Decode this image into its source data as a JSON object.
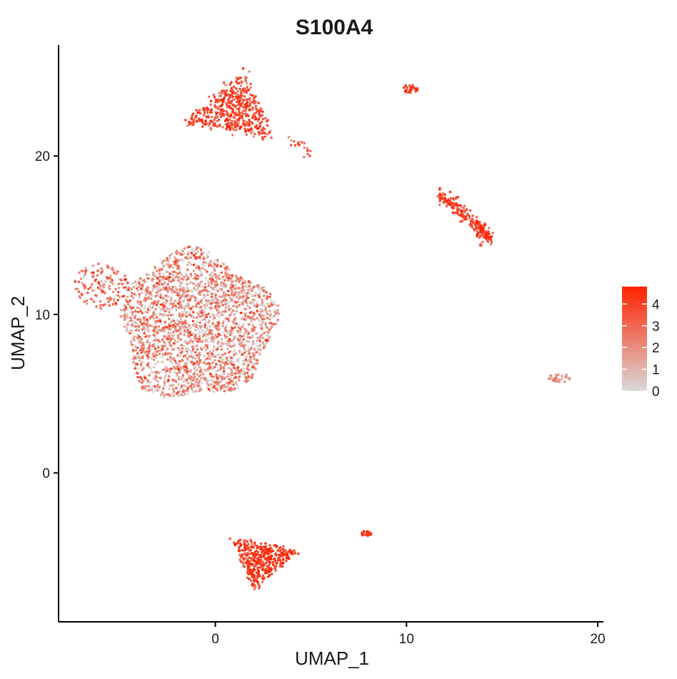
{
  "chart_data": {
    "type": "scatter",
    "title": "S100A4",
    "xlabel": "UMAP_1",
    "ylabel": "UMAP_2",
    "xlim": [
      -8.2,
      20.3
    ],
    "ylim": [
      -9.4,
      27.0
    ],
    "x_ticks": [
      0,
      10,
      20
    ],
    "x_tick_labels": [
      "0",
      "10",
      "20"
    ],
    "y_ticks": [
      0,
      10,
      20
    ],
    "y_tick_labels": [
      "0",
      "10",
      "20"
    ],
    "grid": false,
    "legend": {
      "placement": "right",
      "kind": "colorbar",
      "range": [
        0,
        4.8
      ],
      "ticks": [
        0,
        1,
        2,
        3,
        4
      ],
      "tick_labels": [
        "0",
        "1",
        "2",
        "3",
        "4"
      ],
      "low_color": "#d9d9d9",
      "high_color": "#ff2200"
    },
    "point_color_scale": [
      "#d9d9d9",
      "#ff2200"
    ],
    "clusters": [
      {
        "id": "large-central",
        "center": [
          -1.0,
          9.3
        ],
        "spread": [
          4.0,
          4.6
        ],
        "shape": "blob",
        "count": 2600,
        "expr_mean": 1.6,
        "expr_sd": 1.2
      },
      {
        "id": "left-lobe",
        "center": [
          -6.0,
          11.8
        ],
        "spread": [
          0.9,
          0.9
        ],
        "shape": "ellipse",
        "count": 140,
        "expr_mean": 2.7,
        "expr_sd": 0.9
      },
      {
        "id": "top-triangle",
        "vertices": [
          [
            1.5,
            25.4
          ],
          [
            -1.6,
            22.1
          ],
          [
            3.0,
            21.2
          ]
        ],
        "shape": "triangle",
        "count": 520,
        "expr_mean": 3.4,
        "expr_sd": 0.9
      },
      {
        "id": "bottom-triangle",
        "vertices": [
          [
            1.0,
            -4.2
          ],
          [
            4.3,
            -5.0
          ],
          [
            2.0,
            -7.3
          ]
        ],
        "shape": "triangle",
        "count": 420,
        "expr_mean": 3.9,
        "expr_sd": 0.7
      },
      {
        "id": "right-streak",
        "path": [
          [
            11.8,
            17.5
          ],
          [
            12.8,
            16.6
          ],
          [
            13.8,
            15.5
          ],
          [
            14.3,
            14.7
          ]
        ],
        "shape": "streak",
        "count": 230,
        "expr_mean": 3.6,
        "expr_sd": 0.8
      },
      {
        "id": "top-right-small",
        "center": [
          10.2,
          24.2
        ],
        "spread": [
          0.25,
          0.2
        ],
        "shape": "ellipse",
        "count": 35,
        "expr_mean": 3.8,
        "expr_sd": 0.6
      },
      {
        "id": "top-tail",
        "path": [
          [
            3.9,
            21.0
          ],
          [
            5.0,
            20.2
          ]
        ],
        "shape": "streak",
        "count": 18,
        "expr_mean": 2.8,
        "expr_sd": 0.9
      },
      {
        "id": "far-right-small",
        "center": [
          18.0,
          6.0
        ],
        "spread": [
          0.35,
          0.18
        ],
        "shape": "ellipse",
        "count": 40,
        "expr_mean": 1.6,
        "expr_sd": 1.0
      },
      {
        "id": "small-mid-bottom",
        "center": [
          7.9,
          -3.8
        ],
        "spread": [
          0.2,
          0.12
        ],
        "shape": "ellipse",
        "count": 22,
        "expr_mean": 3.6,
        "expr_sd": 0.8
      }
    ]
  }
}
